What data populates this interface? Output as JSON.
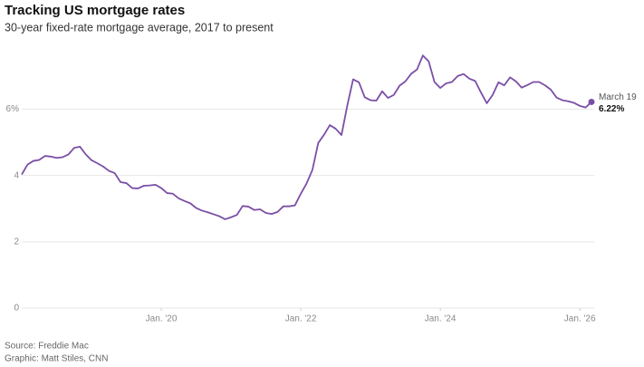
{
  "chart_data": {
    "type": "line",
    "title": "Tracking US mortgage rates",
    "subtitle": "30-year fixed-rate mortgage average, 2017 to present",
    "source": "Source: Freddie Mac",
    "credit": "Graphic: Matt Stiles, CNN",
    "color": "#7b4fa6",
    "grid": true,
    "x": [
      "2018-01",
      "2018-02",
      "2018-03",
      "2018-04",
      "2018-05",
      "2018-06",
      "2018-07",
      "2018-08",
      "2018-09",
      "2018-10",
      "2018-11",
      "2018-12",
      "2019-01",
      "2019-02",
      "2019-03",
      "2019-04",
      "2019-05",
      "2019-06",
      "2019-07",
      "2019-08",
      "2019-09",
      "2019-10",
      "2019-11",
      "2019-12",
      "2020-01",
      "2020-02",
      "2020-03",
      "2020-04",
      "2020-05",
      "2020-06",
      "2020-07",
      "2020-08",
      "2020-09",
      "2020-10",
      "2020-11",
      "2020-12",
      "2021-01",
      "2021-02",
      "2021-03",
      "2021-04",
      "2021-05",
      "2021-06",
      "2021-07",
      "2021-08",
      "2021-09",
      "2021-10",
      "2021-11",
      "2021-12",
      "2022-01",
      "2022-02",
      "2022-03",
      "2022-04",
      "2022-05",
      "2022-06",
      "2022-07",
      "2022-08",
      "2022-09",
      "2022-10",
      "2022-11",
      "2022-12",
      "2023-01",
      "2023-02",
      "2023-03",
      "2023-04",
      "2023-05",
      "2023-06",
      "2023-07",
      "2023-08",
      "2023-09",
      "2023-10",
      "2023-11",
      "2023-12",
      "2024-01",
      "2024-02",
      "2024-03",
      "2024-04",
      "2024-05",
      "2024-06",
      "2024-07",
      "2024-08",
      "2024-09",
      "2024-10",
      "2024-11",
      "2024-12",
      "2025-01",
      "2025-02",
      "2025-03",
      "2025-04",
      "2025-05",
      "2025-06",
      "2025-07",
      "2025-08",
      "2025-09",
      "2025-10",
      "2025-11",
      "2025-12",
      "2026-01",
      "2026-02",
      "2026-03"
    ],
    "values": [
      4.03,
      4.33,
      4.44,
      4.47,
      4.59,
      4.57,
      4.53,
      4.55,
      4.63,
      4.83,
      4.87,
      4.64,
      4.46,
      4.37,
      4.27,
      4.14,
      4.07,
      3.8,
      3.77,
      3.62,
      3.61,
      3.69,
      3.7,
      3.72,
      3.62,
      3.47,
      3.45,
      3.31,
      3.23,
      3.16,
      3.02,
      2.94,
      2.89,
      2.83,
      2.77,
      2.68,
      2.74,
      2.81,
      3.08,
      3.06,
      2.96,
      2.98,
      2.87,
      2.84,
      2.9,
      3.07,
      3.07,
      3.1,
      3.45,
      3.76,
      4.17,
      4.98,
      5.23,
      5.52,
      5.41,
      5.22,
      6.11,
      6.9,
      6.81,
      6.36,
      6.27,
      6.26,
      6.54,
      6.34,
      6.43,
      6.71,
      6.84,
      7.07,
      7.2,
      7.62,
      7.44,
      6.82,
      6.64,
      6.78,
      6.82,
      7.0,
      7.06,
      6.92,
      6.85,
      6.5,
      6.18,
      6.43,
      6.81,
      6.72,
      6.96,
      6.84,
      6.65,
      6.73,
      6.82,
      6.82,
      6.72,
      6.59,
      6.35,
      6.27,
      6.24,
      6.19,
      6.1,
      6.05,
      6.22
    ],
    "annotation": {
      "date_label": "March 19",
      "value_label": "6.22%"
    },
    "xlim": [
      "2018-01",
      "2026-03"
    ],
    "xticks": [
      {
        "value": "2020-01",
        "label": "Jan. '20"
      },
      {
        "value": "2022-01",
        "label": "Jan. '22"
      },
      {
        "value": "2024-01",
        "label": "Jan. '24"
      },
      {
        "value": "2026-01",
        "label": "Jan. '26"
      }
    ],
    "ylim": [
      0,
      8.2
    ],
    "yticks": [
      0,
      2,
      4,
      {
        "value": 6,
        "label": "6%"
      }
    ]
  }
}
